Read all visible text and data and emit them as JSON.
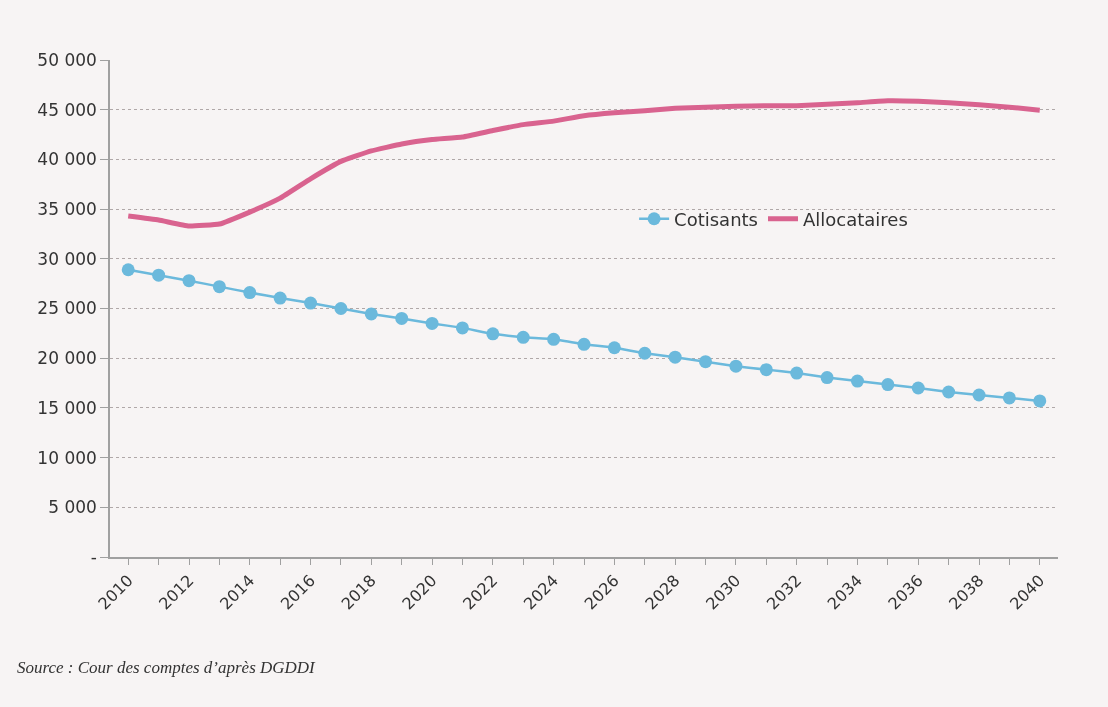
{
  "chart_data": {
    "type": "line",
    "categories": [
      "2010",
      null,
      "2012",
      null,
      "2014",
      null,
      "2016",
      null,
      "2018",
      null,
      "2020",
      null,
      "2022",
      null,
      "2024",
      null,
      "2026",
      null,
      "2028",
      null,
      "2030",
      null,
      "2032",
      null,
      "2034",
      null,
      "2036",
      null,
      "2038",
      null,
      "2040"
    ],
    "series": [
      {
        "name": "Cotisants",
        "color": "#6bb9dc",
        "marker": "circle",
        "values": [
          28900,
          28350,
          27800,
          27200,
          26600,
          26050,
          25550,
          25000,
          24450,
          24000,
          23500,
          23050,
          22450,
          22100,
          21900,
          21400,
          21050,
          20500,
          20100,
          19650,
          19200,
          18850,
          18500,
          18050,
          17700,
          17350,
          17000,
          16600,
          16300,
          16000,
          15700
        ]
      },
      {
        "name": "Allocataires",
        "color": "#d9638f",
        "marker": "none",
        "values": [
          34300,
          33900,
          33300,
          33500,
          34700,
          36100,
          38050,
          39800,
          40850,
          41550,
          42000,
          42250,
          42900,
          43500,
          43850,
          44400,
          44700,
          44900,
          45150,
          45250,
          45350,
          45400,
          45400,
          45550,
          45700,
          45900,
          45850,
          45700,
          45500,
          45250,
          44950
        ]
      }
    ],
    "ylim": [
      0,
      50000
    ],
    "yticks": [
      {
        "value": 0,
        "label": "-"
      },
      {
        "value": 5000,
        "label": "5 000"
      },
      {
        "value": 10000,
        "label": "10 000"
      },
      {
        "value": 15000,
        "label": "15 000"
      },
      {
        "value": 20000,
        "label": "20 000"
      },
      {
        "value": 25000,
        "label": "25 000"
      },
      {
        "value": 30000,
        "label": "30 000"
      },
      {
        "value": 35000,
        "label": "35 000"
      },
      {
        "value": 40000,
        "label": "40 000"
      },
      {
        "value": 45000,
        "label": "45 000"
      },
      {
        "value": 50000,
        "label": "50 000"
      }
    ],
    "grid": "y",
    "legend": "right",
    "line_style": "solid",
    "annotations": [
      "Source : Cour des comptes d’après DGDDI"
    ]
  }
}
